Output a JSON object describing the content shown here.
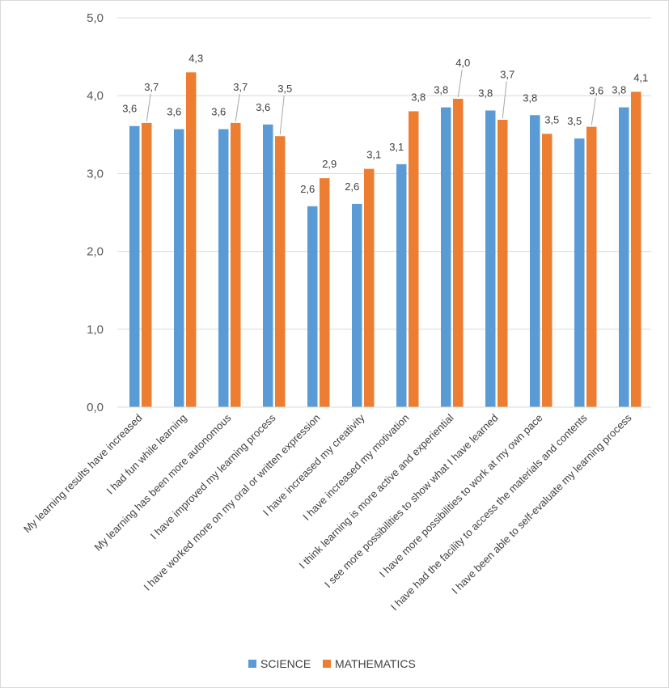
{
  "chart_data": {
    "type": "bar",
    "categories": [
      "My learning results have increased",
      "I had fun while learning",
      "My learning has been more autonomous",
      "I have improved my learning process",
      "I have worked more on my oral or written expression",
      "I have increased my creativity",
      "I have increased my motivation",
      "I think learning is more active and experiential",
      "I see more possibilities to show what I have learned",
      "I have more possibilities to work at my own pace",
      "I have had the facility to access the materials and contents",
      "I have been able to self-evaluate my learning process"
    ],
    "series": [
      {
        "name": "SCIENCE",
        "color": "#5b9bd5",
        "values": [
          3.61,
          3.57,
          3.57,
          3.63,
          2.58,
          2.61,
          3.12,
          3.85,
          3.81,
          3.75,
          3.45,
          3.85
        ],
        "labels": [
          "3,6",
          "3,6",
          "3,6",
          "3,6",
          "2,6",
          "2,6",
          "3,1",
          "3,8",
          "3,8",
          "3,8",
          "3,5",
          "3,8"
        ]
      },
      {
        "name": "MATHEMATICS",
        "color": "#ed7d31",
        "values": [
          3.65,
          4.3,
          3.65,
          3.48,
          2.94,
          3.06,
          3.8,
          3.96,
          3.69,
          3.51,
          3.6,
          4.05
        ],
        "labels": [
          "3,7",
          "4,3",
          "3,7",
          "3,5",
          "2,9",
          "3,1",
          "3,8",
          "4,0",
          "3,7",
          "3,5",
          "3,6",
          "4,1"
        ]
      }
    ],
    "ylim": [
      0,
      5
    ],
    "yticks": [
      "0,0",
      "1,0",
      "2,0",
      "3,0",
      "4,0",
      "5,0"
    ],
    "grid": true,
    "legend": "bottom"
  }
}
